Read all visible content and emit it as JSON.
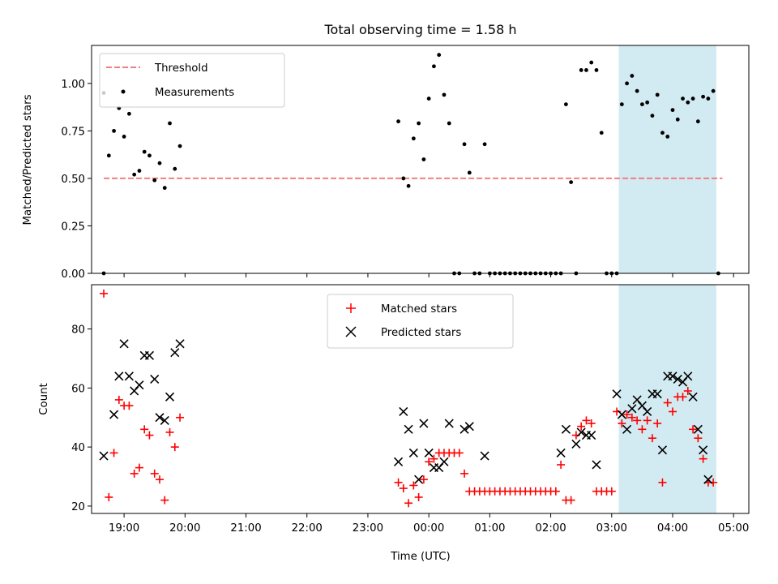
{
  "chart_data": [
    {
      "type": "scatter",
      "title": "Total observing time = 1.58 h",
      "xlabel": "",
      "ylabel": "Matched/Predicted stars",
      "xlim": [
        "18:28",
        "05:15"
      ],
      "ylim": [
        0,
        1.2
      ],
      "y_ticks": [
        "0.00",
        "0.25",
        "0.50",
        "0.75",
        "1.00"
      ],
      "grid": false,
      "legend_position": "top-left",
      "highlight_region": {
        "x_start": "03:07",
        "x_end": "04:43",
        "color": "#add8e6"
      },
      "series": [
        {
          "name": "Threshold",
          "style": "dashed-line",
          "color": "#f08080",
          "points": [
            [
              "18:40",
              0.5
            ],
            [
              "04:49",
              0.5
            ]
          ]
        },
        {
          "name": "Measurements",
          "style": "dot",
          "color": "#000000",
          "points": [
            [
              "18:40",
              0.0
            ],
            [
              "18:40",
              0.95
            ],
            [
              "18:45",
              0.62
            ],
            [
              "18:50",
              0.75
            ],
            [
              "18:55",
              0.87
            ],
            [
              "19:00",
              0.72
            ],
            [
              "19:05",
              0.84
            ],
            [
              "19:10",
              0.52
            ],
            [
              "19:15",
              0.54
            ],
            [
              "19:20",
              0.64
            ],
            [
              "19:25",
              0.62
            ],
            [
              "19:30",
              0.49
            ],
            [
              "19:35",
              0.58
            ],
            [
              "19:40",
              0.45
            ],
            [
              "19:45",
              0.79
            ],
            [
              "19:50",
              0.55
            ],
            [
              "19:55",
              0.67
            ],
            [
              "23:30",
              0.8
            ],
            [
              "23:35",
              0.5
            ],
            [
              "23:40",
              0.46
            ],
            [
              "23:45",
              0.71
            ],
            [
              "23:50",
              0.79
            ],
            [
              "23:55",
              0.6
            ],
            [
              "00:00",
              0.92
            ],
            [
              "00:05",
              1.09
            ],
            [
              "00:10",
              1.15
            ],
            [
              "00:15",
              0.94
            ],
            [
              "00:20",
              0.79
            ],
            [
              "00:25",
              0.0
            ],
            [
              "00:30",
              0.0
            ],
            [
              "00:35",
              0.68
            ],
            [
              "00:40",
              0.53
            ],
            [
              "00:45",
              0.0
            ],
            [
              "00:50",
              0.0
            ],
            [
              "00:55",
              0.68
            ],
            [
              "01:00",
              0.0
            ],
            [
              "01:05",
              0.0
            ],
            [
              "01:10",
              0.0
            ],
            [
              "01:15",
              0.0
            ],
            [
              "01:20",
              0.0
            ],
            [
              "01:25",
              0.0
            ],
            [
              "01:30",
              0.0
            ],
            [
              "01:35",
              0.0
            ],
            [
              "01:40",
              0.0
            ],
            [
              "01:45",
              0.0
            ],
            [
              "01:50",
              0.0
            ],
            [
              "01:55",
              0.0
            ],
            [
              "02:00",
              0.0
            ],
            [
              "02:05",
              0.0
            ],
            [
              "02:10",
              0.0
            ],
            [
              "02:15",
              0.89
            ],
            [
              "02:20",
              0.48
            ],
            [
              "02:25",
              0.0
            ],
            [
              "02:30",
              1.07
            ],
            [
              "02:35",
              1.07
            ],
            [
              "02:40",
              1.11
            ],
            [
              "02:45",
              1.07
            ],
            [
              "02:50",
              0.74
            ],
            [
              "02:55",
              0.0
            ],
            [
              "03:00",
              0.0
            ],
            [
              "03:05",
              0.0
            ],
            [
              "03:10",
              0.89
            ],
            [
              "03:15",
              1.0
            ],
            [
              "03:20",
              1.04
            ],
            [
              "03:25",
              0.96
            ],
            [
              "03:30",
              0.89
            ],
            [
              "03:35",
              0.9
            ],
            [
              "03:40",
              0.83
            ],
            [
              "03:45",
              0.94
            ],
            [
              "03:50",
              0.74
            ],
            [
              "03:55",
              0.72
            ],
            [
              "04:00",
              0.86
            ],
            [
              "04:05",
              0.81
            ],
            [
              "04:10",
              0.92
            ],
            [
              "04:15",
              0.9
            ],
            [
              "04:20",
              0.92
            ],
            [
              "04:25",
              0.8
            ],
            [
              "04:30",
              0.93
            ],
            [
              "04:35",
              0.92
            ],
            [
              "04:40",
              0.96
            ],
            [
              "04:45",
              0.0
            ]
          ]
        }
      ]
    },
    {
      "type": "scatter",
      "title": "",
      "xlabel": "Time (UTC)",
      "ylabel": "Count",
      "xlim": [
        "18:28",
        "05:15"
      ],
      "ylim": [
        17.5,
        95
      ],
      "x_ticks": [
        "19:00",
        "20:00",
        "21:00",
        "22:00",
        "23:00",
        "00:00",
        "01:00",
        "02:00",
        "03:00",
        "04:00",
        "05:00"
      ],
      "y_ticks": [
        "20",
        "40",
        "60",
        "80"
      ],
      "grid": false,
      "legend_position": "top-center",
      "highlight_region": {
        "x_start": "03:07",
        "x_end": "04:43",
        "color": "#add8e6"
      },
      "series": [
        {
          "name": "Matched stars",
          "marker": "plus",
          "color": "#ff0000",
          "points": [
            [
              "18:40",
              92
            ],
            [
              "18:45",
              23
            ],
            [
              "18:50",
              38
            ],
            [
              "18:55",
              56
            ],
            [
              "19:00",
              54
            ],
            [
              "19:05",
              54
            ],
            [
              "19:10",
              31
            ],
            [
              "19:15",
              33
            ],
            [
              "19:20",
              46
            ],
            [
              "19:25",
              44
            ],
            [
              "19:30",
              31
            ],
            [
              "19:35",
              29
            ],
            [
              "19:40",
              22
            ],
            [
              "19:45",
              45
            ],
            [
              "19:50",
              40
            ],
            [
              "19:55",
              50
            ],
            [
              "23:30",
              28
            ],
            [
              "23:35",
              26
            ],
            [
              "23:40",
              21
            ],
            [
              "23:45",
              27
            ],
            [
              "23:50",
              23
            ],
            [
              "23:55",
              29
            ],
            [
              "00:00",
              35
            ],
            [
              "00:05",
              36
            ],
            [
              "00:10",
              38
            ],
            [
              "00:15",
              38
            ],
            [
              "00:20",
              38
            ],
            [
              "00:25",
              38
            ],
            [
              "00:30",
              38
            ],
            [
              "00:35",
              31
            ],
            [
              "00:40",
              25
            ],
            [
              "00:45",
              25
            ],
            [
              "00:50",
              25
            ],
            [
              "00:55",
              25
            ],
            [
              "01:00",
              25
            ],
            [
              "01:05",
              25
            ],
            [
              "01:10",
              25
            ],
            [
              "01:15",
              25
            ],
            [
              "01:20",
              25
            ],
            [
              "01:25",
              25
            ],
            [
              "01:30",
              25
            ],
            [
              "01:35",
              25
            ],
            [
              "01:40",
              25
            ],
            [
              "01:45",
              25
            ],
            [
              "01:50",
              25
            ],
            [
              "01:55",
              25
            ],
            [
              "02:00",
              25
            ],
            [
              "02:05",
              25
            ],
            [
              "02:10",
              34
            ],
            [
              "02:15",
              22
            ],
            [
              "02:20",
              22
            ],
            [
              "02:25",
              44
            ],
            [
              "02:30",
              47
            ],
            [
              "02:35",
              49
            ],
            [
              "02:40",
              48
            ],
            [
              "02:45",
              25
            ],
            [
              "02:50",
              25
            ],
            [
              "02:55",
              25
            ],
            [
              "03:00",
              25
            ],
            [
              "03:05",
              52
            ],
            [
              "03:10",
              48
            ],
            [
              "03:15",
              51
            ],
            [
              "03:20",
              50
            ],
            [
              "03:25",
              49
            ],
            [
              "03:30",
              46
            ],
            [
              "03:35",
              49
            ],
            [
              "03:40",
              43
            ],
            [
              "03:45",
              48
            ],
            [
              "03:50",
              28
            ],
            [
              "03:55",
              55
            ],
            [
              "04:00",
              52
            ],
            [
              "04:05",
              57
            ],
            [
              "04:10",
              57
            ],
            [
              "04:15",
              59
            ],
            [
              "04:20",
              46
            ],
            [
              "04:25",
              43
            ],
            [
              "04:30",
              36
            ],
            [
              "04:35",
              28
            ],
            [
              "04:40",
              28
            ]
          ]
        },
        {
          "name": "Predicted stars",
          "marker": "x",
          "color": "#000000",
          "points": [
            [
              "18:40",
              37
            ],
            [
              "18:50",
              51
            ],
            [
              "18:55",
              64
            ],
            [
              "19:00",
              75
            ],
            [
              "19:05",
              64
            ],
            [
              "19:10",
              59
            ],
            [
              "19:15",
              61
            ],
            [
              "19:20",
              71
            ],
            [
              "19:25",
              71
            ],
            [
              "19:30",
              63
            ],
            [
              "19:35",
              50
            ],
            [
              "19:40",
              49
            ],
            [
              "19:45",
              57
            ],
            [
              "19:50",
              72
            ],
            [
              "19:55",
              75
            ],
            [
              "23:30",
              35
            ],
            [
              "23:35",
              52
            ],
            [
              "23:40",
              46
            ],
            [
              "23:45",
              38
            ],
            [
              "23:50",
              29
            ],
            [
              "23:55",
              48
            ],
            [
              "00:00",
              38
            ],
            [
              "00:05",
              33
            ],
            [
              "00:10",
              33
            ],
            [
              "00:15",
              35
            ],
            [
              "00:20",
              48
            ],
            [
              "00:35",
              46
            ],
            [
              "00:40",
              47
            ],
            [
              "00:55",
              37
            ],
            [
              "02:10",
              38
            ],
            [
              "02:15",
              46
            ],
            [
              "02:25",
              41
            ],
            [
              "02:30",
              45
            ],
            [
              "02:35",
              44
            ],
            [
              "02:40",
              44
            ],
            [
              "02:45",
              34
            ],
            [
              "03:05",
              58
            ],
            [
              "03:10",
              51
            ],
            [
              "03:15",
              46
            ],
            [
              "03:20",
              53
            ],
            [
              "03:25",
              56
            ],
            [
              "03:30",
              54
            ],
            [
              "03:35",
              52
            ],
            [
              "03:40",
              58
            ],
            [
              "03:45",
              58
            ],
            [
              "03:50",
              39
            ],
            [
              "03:55",
              64
            ],
            [
              "04:00",
              64
            ],
            [
              "04:05",
              63
            ],
            [
              "04:10",
              62
            ],
            [
              "04:15",
              64
            ],
            [
              "04:20",
              57
            ],
            [
              "04:25",
              46
            ],
            [
              "04:30",
              39
            ],
            [
              "04:35",
              29
            ]
          ]
        }
      ]
    }
  ]
}
